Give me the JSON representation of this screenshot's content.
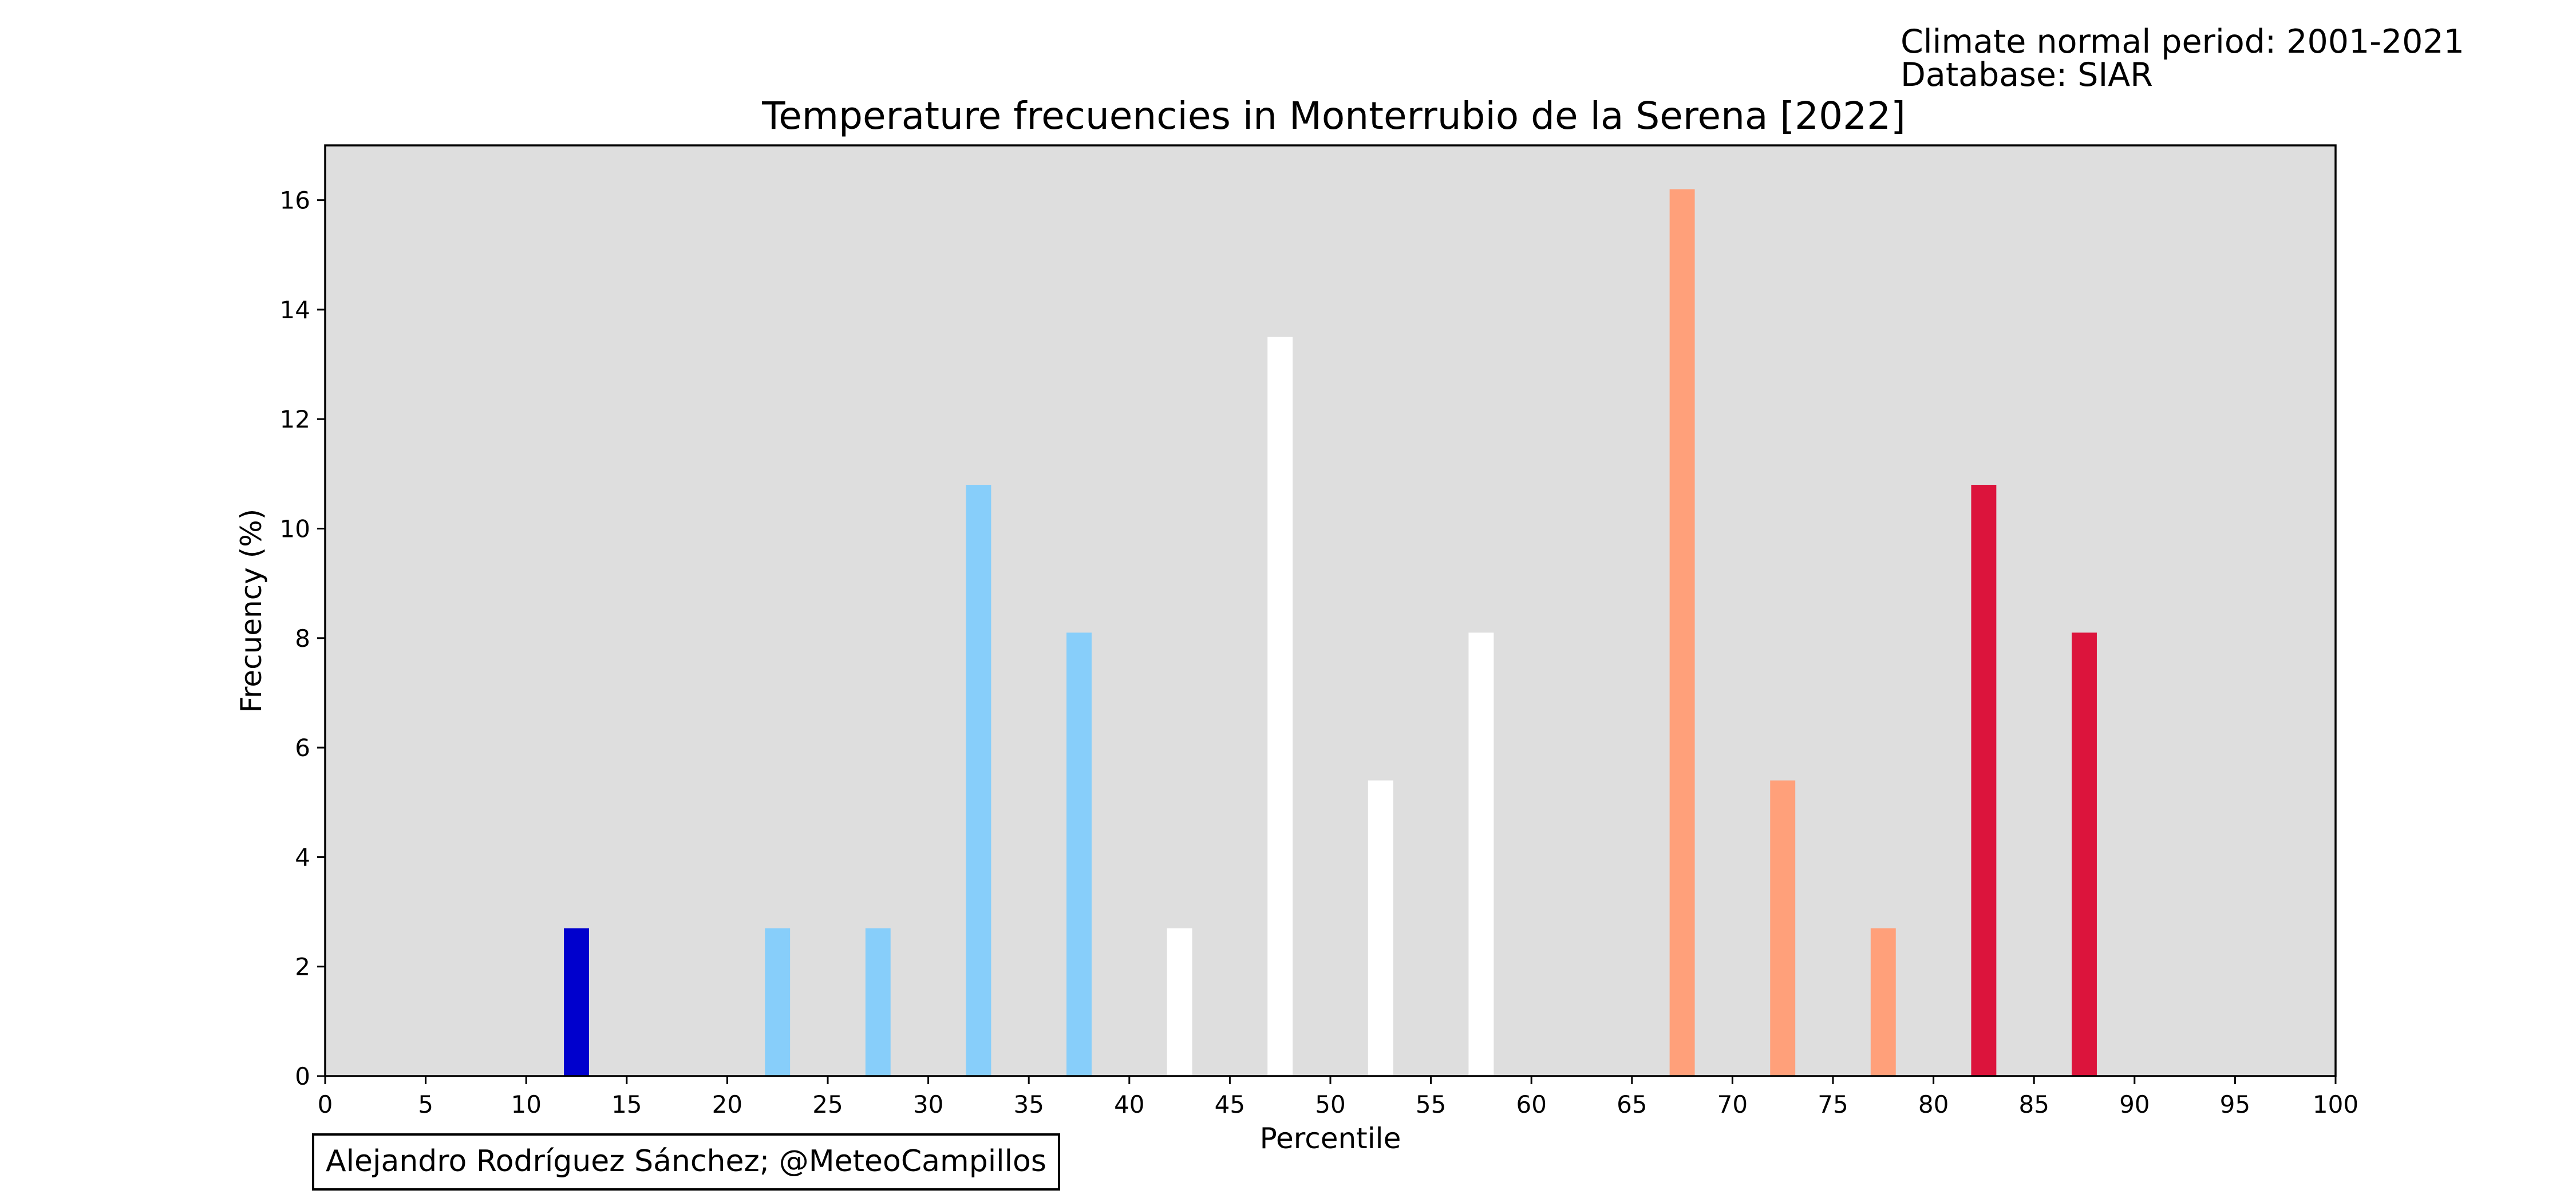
{
  "header": {
    "climate_period": "Climate normal period: 2001-2021",
    "database": "Database: SIAR"
  },
  "credit": "Alejandro Rodríguez Sánchez; @MeteoCampillos",
  "chart_data": {
    "type": "bar",
    "title": "Temperature frecuencies in Monterrubio de la Serena [2022]",
    "xlabel": "Percentile",
    "ylabel": "Frecuency (%)",
    "xlim": [
      0,
      100
    ],
    "ylim": [
      0,
      17
    ],
    "xticks": [
      0,
      5,
      10,
      15,
      20,
      25,
      30,
      35,
      40,
      45,
      50,
      55,
      60,
      65,
      70,
      75,
      80,
      85,
      90,
      95,
      100
    ],
    "yticks": [
      0,
      2,
      4,
      6,
      8,
      10,
      12,
      14,
      16
    ],
    "plot_background": "#dedede",
    "bar_width": 1.25,
    "grid": false,
    "bars": [
      {
        "x": 12.5,
        "value": 2.7,
        "color": "#0000cd"
      },
      {
        "x": 22.5,
        "value": 2.7,
        "color": "#87cefa"
      },
      {
        "x": 27.5,
        "value": 2.7,
        "color": "#87cefa"
      },
      {
        "x": 32.5,
        "value": 10.8,
        "color": "#87cefa"
      },
      {
        "x": 37.5,
        "value": 8.1,
        "color": "#87cefa"
      },
      {
        "x": 42.5,
        "value": 2.7,
        "color": "#ffffff"
      },
      {
        "x": 47.5,
        "value": 13.5,
        "color": "#ffffff"
      },
      {
        "x": 52.5,
        "value": 5.4,
        "color": "#ffffff"
      },
      {
        "x": 57.5,
        "value": 8.1,
        "color": "#ffffff"
      },
      {
        "x": 67.5,
        "value": 16.2,
        "color": "#ffa07a"
      },
      {
        "x": 72.5,
        "value": 5.4,
        "color": "#ffa07a"
      },
      {
        "x": 77.5,
        "value": 2.7,
        "color": "#ffa07a"
      },
      {
        "x": 82.5,
        "value": 10.8,
        "color": "#dc143c"
      },
      {
        "x": 87.5,
        "value": 8.1,
        "color": "#dc143c"
      }
    ]
  }
}
